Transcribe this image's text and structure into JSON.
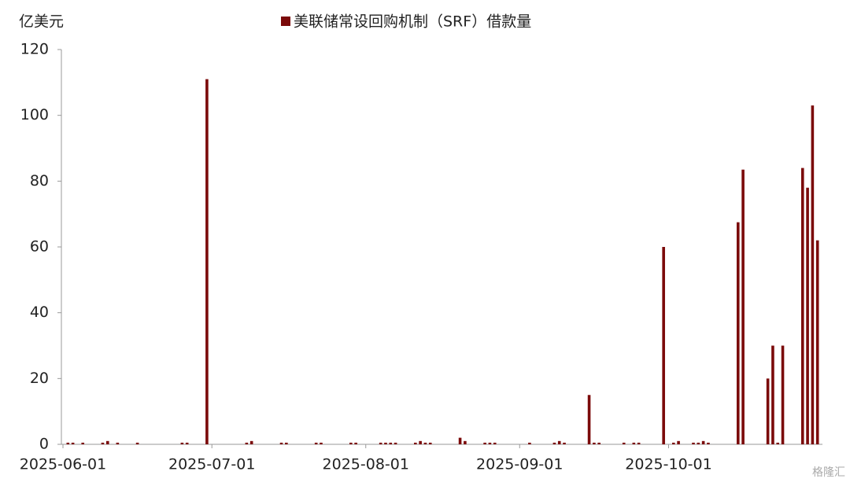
{
  "chart_data": {
    "type": "bar",
    "title": "美联储常设回购机制（SRF）借款量",
    "y_label": "亿美元",
    "series": [
      {
        "name": "美联储常设回购机制（SRF）借款量",
        "color": "#7b0a0a",
        "x": [
          "2025-06-02",
          "2025-06-03",
          "2025-06-05",
          "2025-06-09",
          "2025-06-10",
          "2025-06-12",
          "2025-06-16",
          "2025-06-25",
          "2025-06-26",
          "2025-06-30",
          "2025-07-08",
          "2025-07-09",
          "2025-07-15",
          "2025-07-16",
          "2025-07-22",
          "2025-07-23",
          "2025-07-29",
          "2025-07-30",
          "2025-08-04",
          "2025-08-05",
          "2025-08-06",
          "2025-08-07",
          "2025-08-11",
          "2025-08-12",
          "2025-08-13",
          "2025-08-14",
          "2025-08-20",
          "2025-08-21",
          "2025-08-25",
          "2025-08-26",
          "2025-08-27",
          "2025-09-03",
          "2025-09-08",
          "2025-09-09",
          "2025-09-10",
          "2025-09-15",
          "2025-09-16",
          "2025-09-17",
          "2025-09-22",
          "2025-09-24",
          "2025-09-25",
          "2025-09-30",
          "2025-10-02",
          "2025-10-03",
          "2025-10-06",
          "2025-10-07",
          "2025-10-08",
          "2025-10-09",
          "2025-10-15",
          "2025-10-16",
          "2025-10-21",
          "2025-10-22",
          "2025-10-23",
          "2025-10-24",
          "2025-10-28",
          "2025-10-29",
          "2025-10-30",
          "2025-10-31"
        ],
        "values": [
          0.5,
          0.5,
          0.5,
          0.5,
          1,
          0.5,
          0.5,
          0.5,
          0.5,
          111,
          0.5,
          1,
          0.5,
          0.5,
          0.5,
          0.5,
          0.5,
          0.5,
          0.5,
          0.5,
          0.5,
          0.5,
          0.5,
          1,
          0.5,
          0.5,
          2,
          1,
          0.5,
          0.5,
          0.5,
          0.5,
          0.5,
          1,
          0.5,
          15,
          0.5,
          0.5,
          0.5,
          0.5,
          0.5,
          60,
          0.5,
          1,
          0.5,
          0.5,
          1,
          0.5,
          67.5,
          83.5,
          20,
          30,
          0.5,
          30,
          84,
          78,
          103,
          62
        ]
      }
    ],
    "xlim": [
      "2025-06-01",
      "2025-11-01"
    ],
    "xticks": [
      "2025-06-01",
      "2025-07-01",
      "2025-08-01",
      "2025-09-01",
      "2025-10-01"
    ],
    "ylim": [
      0,
      120
    ],
    "yticks": [
      0,
      20,
      40,
      60,
      80,
      100,
      120
    ],
    "watermark": "格隆汇"
  }
}
